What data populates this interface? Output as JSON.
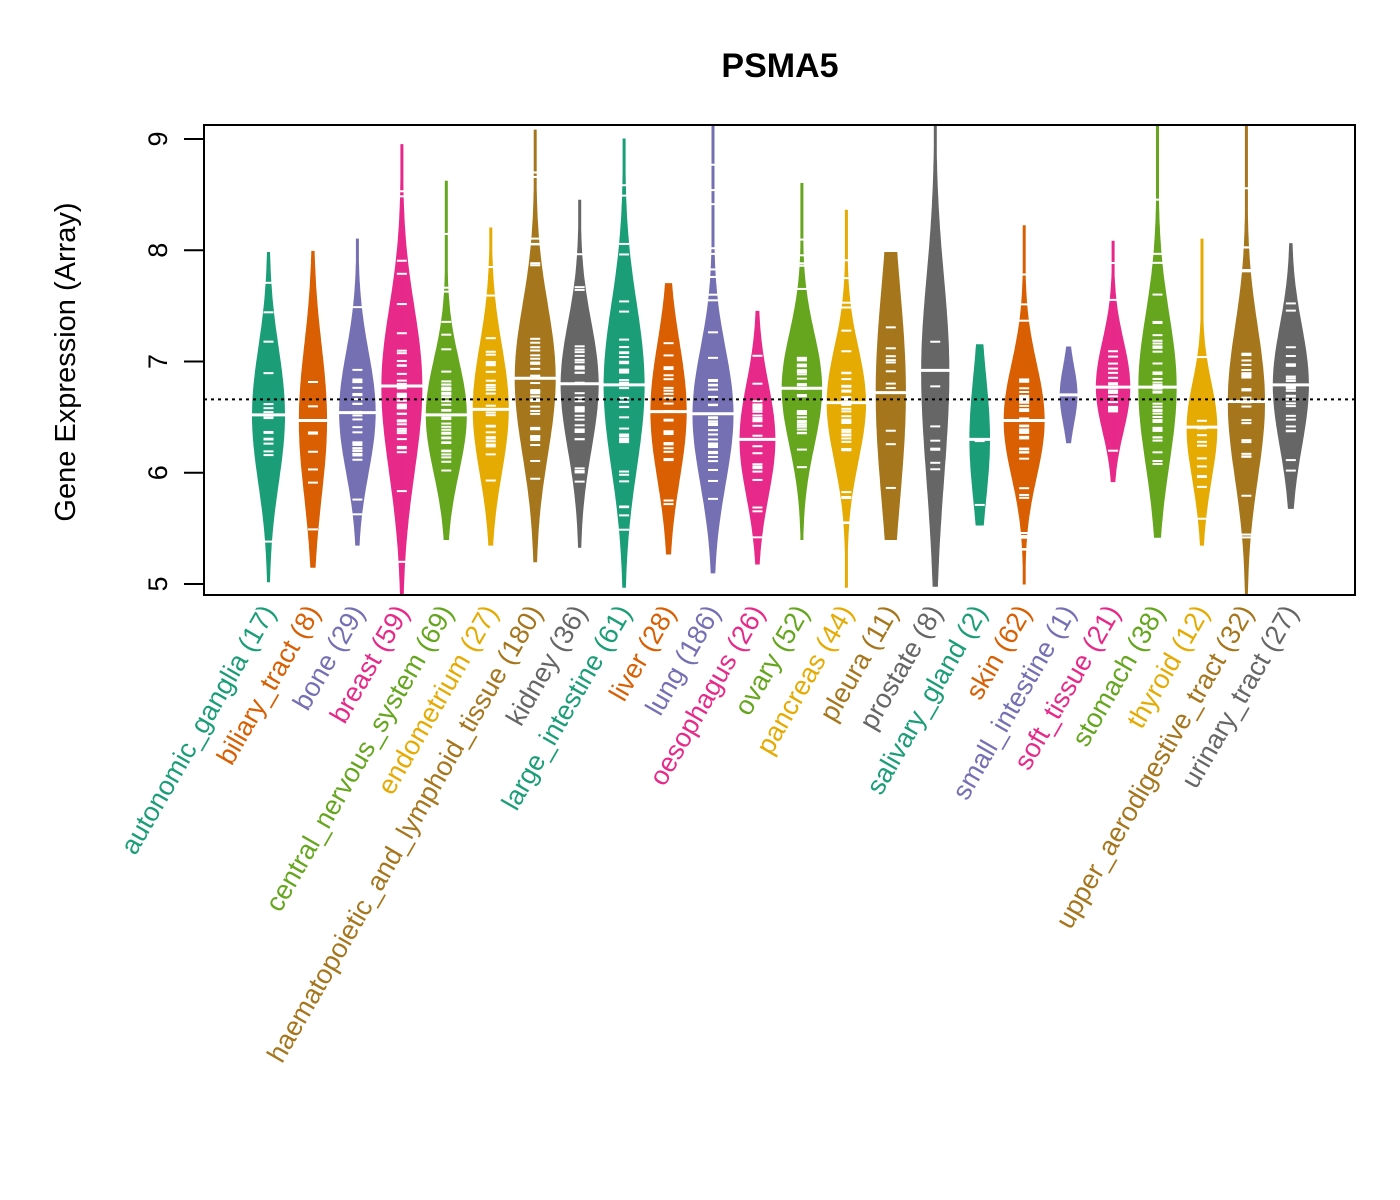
{
  "chart_data": {
    "type": "violin",
    "title": "PSMA5",
    "xlabel": "",
    "ylabel": "Gene Expression (Array)",
    "ylim": [
      4.87,
      9.13
    ],
    "yticks": [
      5,
      6,
      7,
      8,
      9
    ],
    "reference_line": {
      "value": 6.66,
      "style": "dotted",
      "color": "#000000"
    },
    "grid": false,
    "legend": "none",
    "categories": [
      {
        "name": "autonomic_ganglia",
        "n": 17,
        "label": "autonomic_ganglia (17)",
        "color": "#1B9E77",
        "median": 6.52,
        "min": 5.02,
        "max": 7.98,
        "q1": 6.05,
        "q3": 6.95
      },
      {
        "name": "biliary_tract",
        "n": 8,
        "label": "biliary_tract (8)",
        "color": "#D95F02",
        "median": 6.47,
        "min": 5.15,
        "max": 7.99,
        "q1": 5.95,
        "q3": 6.95
      },
      {
        "name": "bone",
        "n": 29,
        "label": "bone (29)",
        "color": "#7570B3",
        "median": 6.54,
        "min": 5.35,
        "max": 8.1,
        "q1": 6.15,
        "q3": 6.95
      },
      {
        "name": "breast",
        "n": 59,
        "label": "breast (59)",
        "color": "#E7298A",
        "median": 6.78,
        "min": 4.87,
        "max": 8.95,
        "q1": 6.1,
        "q3": 7.2
      },
      {
        "name": "central_nervous_system",
        "n": 69,
        "label": "central_nervous_system (69)",
        "color": "#66A61E",
        "median": 6.52,
        "min": 5.4,
        "max": 8.62,
        "q1": 6.1,
        "q3": 6.85
      },
      {
        "name": "endometrium",
        "n": 27,
        "label": "endometrium (27)",
        "color": "#E6AB02",
        "median": 6.57,
        "min": 5.35,
        "max": 8.2,
        "q1": 6.15,
        "q3": 7.0
      },
      {
        "name": "haematopoietic_and_lymphoid_tissue",
        "n": 180,
        "label": "haematopoietic_and_lymphoid_tissue (180)",
        "color": "#A6761D",
        "median": 6.85,
        "min": 5.2,
        "max": 9.08,
        "q1": 6.3,
        "q3": 7.3
      },
      {
        "name": "kidney",
        "n": 36,
        "label": "kidney (36)",
        "color": "#666666",
        "median": 6.8,
        "min": 5.33,
        "max": 8.45,
        "q1": 6.3,
        "q3": 7.15
      },
      {
        "name": "large_intestine",
        "n": 61,
        "label": "large_intestine (61)",
        "color": "#1B9E77",
        "median": 6.79,
        "min": 4.97,
        "max": 9.0,
        "q1": 6.2,
        "q3": 7.3
      },
      {
        "name": "liver",
        "n": 28,
        "label": "liver (28)",
        "color": "#D95F02",
        "median": 6.55,
        "min": 5.27,
        "max": 7.7,
        "q1": 6.1,
        "q3": 7.0
      },
      {
        "name": "lung",
        "n": 186,
        "label": "lung (186)",
        "color": "#7570B3",
        "median": 6.53,
        "min": 5.1,
        "max": 9.13,
        "q1": 6.0,
        "q3": 6.9
      },
      {
        "name": "oesophagus",
        "n": 26,
        "label": "oesophagus (26)",
        "color": "#E7298A",
        "median": 6.3,
        "min": 5.18,
        "max": 7.45,
        "q1": 5.9,
        "q3": 6.65
      },
      {
        "name": "ovary",
        "n": 52,
        "label": "ovary (52)",
        "color": "#66A61E",
        "median": 6.76,
        "min": 5.4,
        "max": 8.6,
        "q1": 6.35,
        "q3": 7.1
      },
      {
        "name": "pancreas",
        "n": 44,
        "label": "pancreas (44)",
        "color": "#E6AB02",
        "median": 6.63,
        "min": 4.97,
        "max": 8.36,
        "q1": 6.2,
        "q3": 6.95
      },
      {
        "name": "pleura",
        "n": 11,
        "label": "pleura (11)",
        "color": "#A6761D",
        "median": 6.72,
        "min": 5.4,
        "max": 7.98,
        "q1": 6.0,
        "q3": 7.4
      },
      {
        "name": "prostate",
        "n": 8,
        "label": "prostate (8)",
        "color": "#666666",
        "median": 6.92,
        "min": 4.98,
        "max": 9.13,
        "q1": 6.0,
        "q3": 7.35
      },
      {
        "name": "salivary_gland",
        "n": 2,
        "label": "salivary_gland (2)",
        "color": "#1B9E77",
        "median": 6.3,
        "min": 5.53,
        "max": 7.15,
        "q1": 5.93,
        "q3": 6.75
      },
      {
        "name": "skin",
        "n": 62,
        "label": "skin (62)",
        "color": "#D95F02",
        "median": 6.47,
        "min": 5.0,
        "max": 8.22,
        "q1": 6.1,
        "q3": 6.85
      },
      {
        "name": "small_intestine",
        "n": 1,
        "label": "small_intestine (1)",
        "color": "#7570B3",
        "median": 6.7,
        "min": 6.27,
        "max": 7.13,
        "q1": 6.7,
        "q3": 6.7
      },
      {
        "name": "soft_tissue",
        "n": 21,
        "label": "soft_tissue (21)",
        "color": "#E7298A",
        "median": 6.77,
        "min": 5.92,
        "max": 8.08,
        "q1": 6.5,
        "q3": 7.1
      },
      {
        "name": "stomach",
        "n": 38,
        "label": "stomach (38)",
        "color": "#66A61E",
        "median": 6.77,
        "min": 5.42,
        "max": 9.13,
        "q1": 6.2,
        "q3": 7.2
      },
      {
        "name": "thyroid",
        "n": 12,
        "label": "thyroid (12)",
        "color": "#E6AB02",
        "median": 6.41,
        "min": 5.35,
        "max": 8.1,
        "q1": 5.95,
        "q3": 6.6
      },
      {
        "name": "upper_aerodigestive_tract",
        "n": 32,
        "label": "upper_aerodigestive_tract (32)",
        "color": "#A6761D",
        "median": 6.64,
        "min": 4.87,
        "max": 9.13,
        "q1": 6.1,
        "q3": 7.1
      },
      {
        "name": "urinary_tract",
        "n": 27,
        "label": "urinary_tract (27)",
        "color": "#666666",
        "median": 6.79,
        "min": 5.68,
        "max": 8.06,
        "q1": 6.35,
        "q3": 7.15
      }
    ]
  }
}
